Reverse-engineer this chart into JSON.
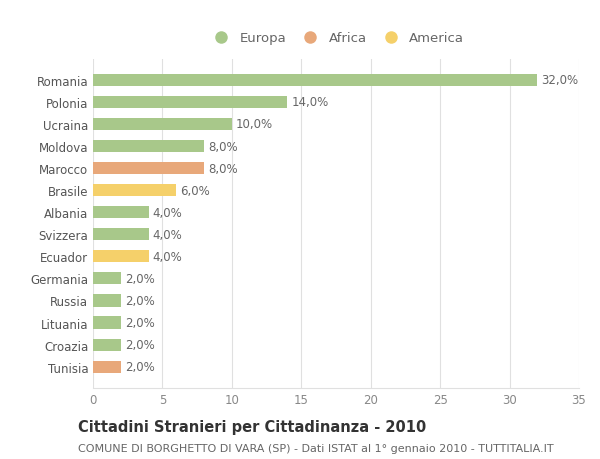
{
  "countries": [
    "Romania",
    "Polonia",
    "Ucraina",
    "Moldova",
    "Marocco",
    "Brasile",
    "Albania",
    "Svizzera",
    "Ecuador",
    "Germania",
    "Russia",
    "Lituania",
    "Croazia",
    "Tunisia"
  ],
  "values": [
    32.0,
    14.0,
    10.0,
    8.0,
    8.0,
    6.0,
    4.0,
    4.0,
    4.0,
    2.0,
    2.0,
    2.0,
    2.0,
    2.0
  ],
  "continents": [
    "Europa",
    "Europa",
    "Europa",
    "Europa",
    "Africa",
    "America",
    "Europa",
    "Europa",
    "America",
    "Europa",
    "Europa",
    "Europa",
    "Europa",
    "Africa"
  ],
  "colors": {
    "Europa": "#a8c88a",
    "Africa": "#e8a87a",
    "America": "#f5d06a"
  },
  "legend_order": [
    "Europa",
    "Africa",
    "America"
  ],
  "title": "Cittadini Stranieri per Cittadinanza - 2010",
  "subtitle": "COMUNE DI BORGHETTO DI VARA (SP) - Dati ISTAT al 1° gennaio 2010 - TUTTITALIA.IT",
  "xlim": [
    0,
    35
  ],
  "xticks": [
    0,
    5,
    10,
    15,
    20,
    25,
    30,
    35
  ],
  "bg_color": "#ffffff",
  "grid_color": "#e0e0e0",
  "bar_height": 0.55,
  "label_fontsize": 8.5,
  "title_fontsize": 10.5,
  "subtitle_fontsize": 8,
  "legend_fontsize": 9.5,
  "ytick_fontsize": 8.5,
  "xtick_fontsize": 8.5
}
